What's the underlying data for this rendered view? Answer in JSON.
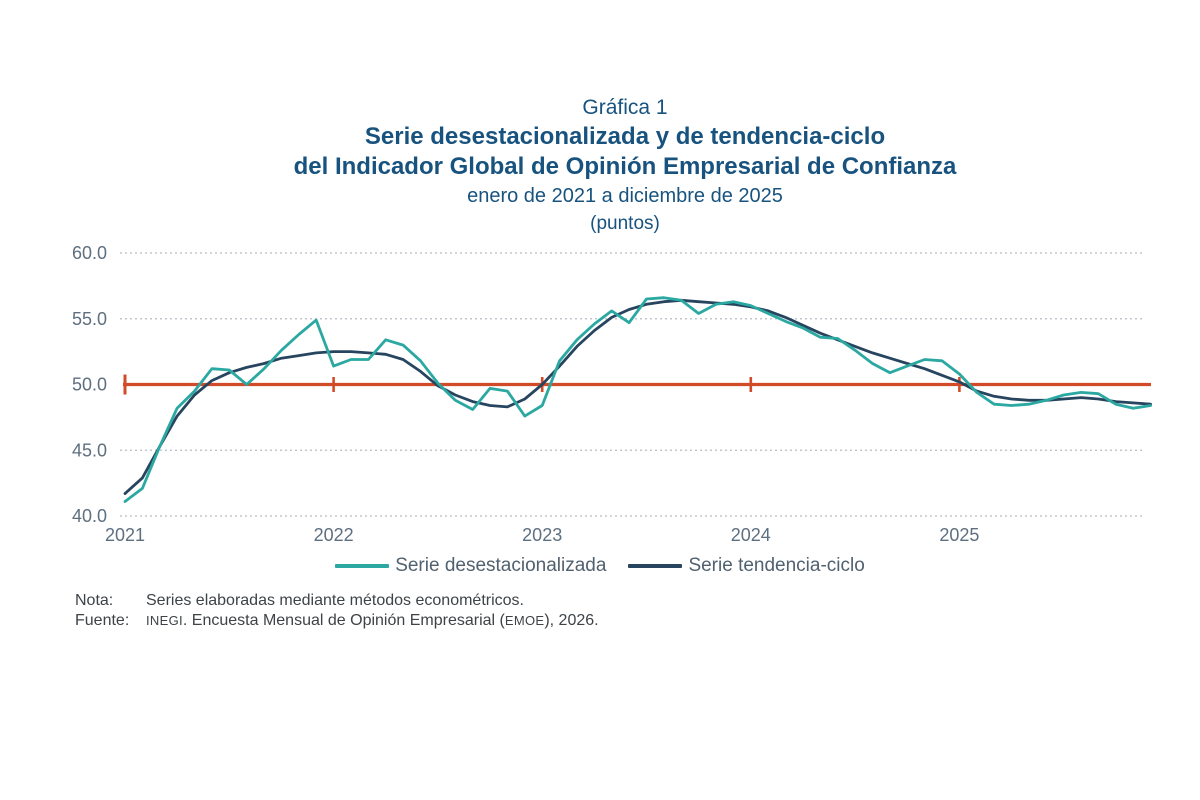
{
  "title": {
    "label": "Gráfica 1",
    "line1": "Serie desestacionalizada y de tendencia-ciclo",
    "line2": "del Indicador Global de Opinión Empresarial de Confianza",
    "subtitle": "enero de 2021 a diciembre de 2025",
    "units": "(puntos)",
    "color": "#18537f"
  },
  "chart_data": {
    "type": "line",
    "title": "Serie desestacionalizada y de tendencia-ciclo del Indicador Global de Opinión Empresarial de Confianza",
    "subtitle": "enero de 2021 a diciembre de 2025",
    "units": "puntos",
    "x_frequency": "monthly",
    "x_range": [
      "2021-01",
      "2025-12"
    ],
    "x_tick_labels": [
      "2021",
      "2022",
      "2023",
      "2024",
      "2025"
    ],
    "y_tick_labels": [
      "60.0",
      "55.0",
      "50.0",
      "45.0",
      "40.0"
    ],
    "ylim": [
      40.0,
      60.0
    ],
    "grid": "horizontal-dotted",
    "legend_position": "bottom",
    "reference_line": {
      "value": 50.0,
      "color": "#d24b28"
    },
    "series": [
      {
        "name": "Serie desestacionalizada",
        "color": "#2aa8a1",
        "values": [
          41.1,
          42.1,
          45.3,
          48.2,
          49.5,
          51.2,
          51.1,
          50.0,
          51.2,
          52.6,
          53.8,
          54.9,
          51.4,
          51.9,
          51.9,
          53.4,
          53.0,
          51.8,
          50.1,
          48.8,
          48.1,
          49.7,
          49.5,
          47.6,
          48.4,
          51.8,
          53.4,
          54.6,
          55.6,
          54.7,
          56.5,
          56.6,
          56.4,
          55.4,
          56.1,
          56.3,
          56.0,
          55.4,
          54.8,
          54.3,
          53.6,
          53.5,
          52.6,
          51.6,
          50.9,
          51.4,
          51.9,
          51.8,
          50.8,
          49.4,
          48.5,
          48.4,
          48.5,
          48.8,
          49.2,
          49.4,
          49.3,
          48.5,
          48.2,
          48.4
        ]
      },
      {
        "name": "Serie tendencia-ciclo",
        "color": "#27455f",
        "values": [
          41.7,
          42.9,
          45.3,
          47.6,
          49.2,
          50.3,
          50.9,
          51.3,
          51.6,
          52.0,
          52.2,
          52.4,
          52.5,
          52.5,
          52.4,
          52.3,
          51.9,
          51.0,
          49.9,
          49.2,
          48.7,
          48.4,
          48.3,
          48.9,
          50.0,
          51.4,
          52.9,
          54.1,
          55.1,
          55.7,
          56.1,
          56.3,
          56.4,
          56.3,
          56.2,
          56.1,
          55.9,
          55.6,
          55.1,
          54.5,
          53.9,
          53.4,
          52.9,
          52.4,
          52.0,
          51.6,
          51.2,
          50.7,
          50.2,
          49.5,
          49.1,
          48.9,
          48.8,
          48.8,
          48.9,
          49.0,
          48.9,
          48.7,
          48.6,
          48.5
        ]
      }
    ]
  },
  "notes": {
    "nota_label": "Nota:",
    "nota_text": "Series elaboradas mediante métodos econométricos.",
    "fuente_label": "Fuente:",
    "fuente_org": "INEGI",
    "fuente_mid": ". Encuesta Mensual de Opinión Empresarial (",
    "fuente_acronym": "EMOE",
    "fuente_end": "), 2026."
  }
}
